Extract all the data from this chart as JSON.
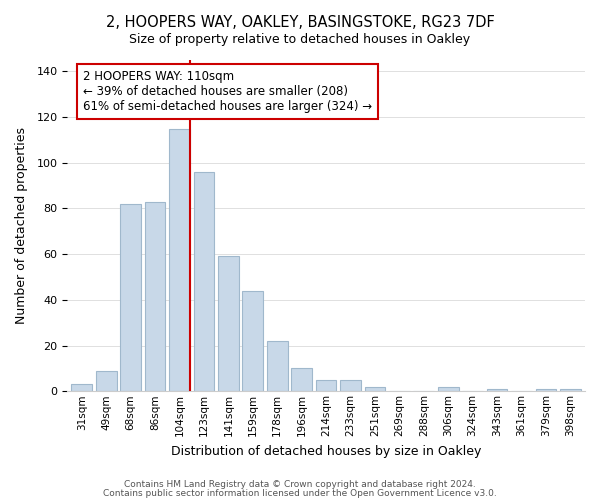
{
  "title": "2, HOOPERS WAY, OAKLEY, BASINGSTOKE, RG23 7DF",
  "subtitle": "Size of property relative to detached houses in Oakley",
  "xlabel": "Distribution of detached houses by size in Oakley",
  "ylabel": "Number of detached properties",
  "bar_color": "#c8d8e8",
  "bar_edge_color": "#a0b8cc",
  "highlight_line_color": "#cc0000",
  "categories": [
    "31sqm",
    "49sqm",
    "68sqm",
    "86sqm",
    "104sqm",
    "123sqm",
    "141sqm",
    "159sqm",
    "178sqm",
    "196sqm",
    "214sqm",
    "233sqm",
    "251sqm",
    "269sqm",
    "288sqm",
    "306sqm",
    "324sqm",
    "343sqm",
    "361sqm",
    "379sqm",
    "398sqm"
  ],
  "values": [
    3,
    9,
    82,
    83,
    115,
    96,
    59,
    44,
    22,
    10,
    5,
    5,
    2,
    0,
    0,
    2,
    0,
    1,
    0,
    1,
    1
  ],
  "highlight_bar_index": 4,
  "annotation_title": "2 HOOPERS WAY: 110sqm",
  "annotation_line1": "← 39% of detached houses are smaller (208)",
  "annotation_line2": "61% of semi-detached houses are larger (324) →",
  "ylim": [
    0,
    145
  ],
  "yticks": [
    0,
    20,
    40,
    60,
    80,
    100,
    120,
    140
  ],
  "footer1": "Contains HM Land Registry data © Crown copyright and database right 2024.",
  "footer2": "Contains public sector information licensed under the Open Government Licence v3.0.",
  "background_color": "#ffffff",
  "grid_color": "#e0e0e0"
}
